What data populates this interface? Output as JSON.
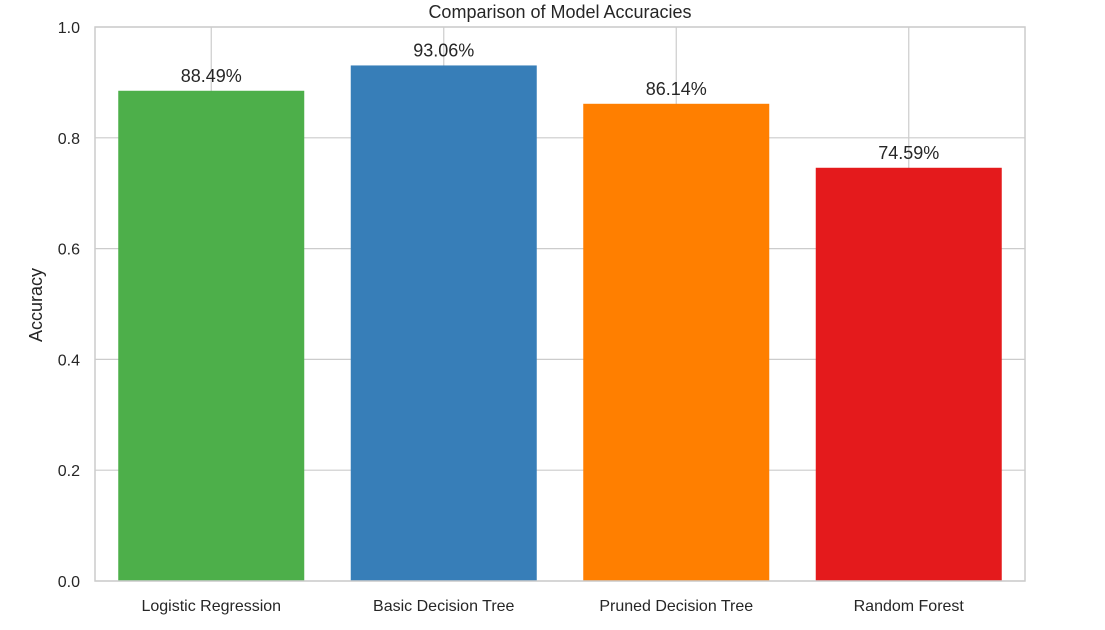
{
  "chart_data": {
    "type": "bar",
    "title": "Comparison of Model Accuracies",
    "xlabel": "",
    "ylabel": "Accuracy",
    "categories": [
      "Logistic Regression",
      "Basic Decision Tree",
      "Pruned Decision Tree",
      "Random Forest"
    ],
    "values": [
      0.8849,
      0.9306,
      0.8614,
      0.7459
    ],
    "value_labels": [
      "88.49%",
      "93.06%",
      "86.14%",
      "74.59%"
    ],
    "colors": [
      "#4daf4a",
      "#377eb8",
      "#ff7f00",
      "#e41a1c"
    ],
    "ylim": [
      0,
      1.0
    ],
    "yticks": [
      0.0,
      0.2,
      0.4,
      0.6,
      0.8,
      1.0
    ],
    "ytick_labels": [
      "0.0",
      "0.2",
      "0.4",
      "0.6",
      "0.8",
      "1.0"
    ],
    "grid": true,
    "legend": "none"
  },
  "style": {
    "grid_color": "#cccccc",
    "spine_color": "#cccccc",
    "text_color": "#262626",
    "background": "#ffffff"
  }
}
